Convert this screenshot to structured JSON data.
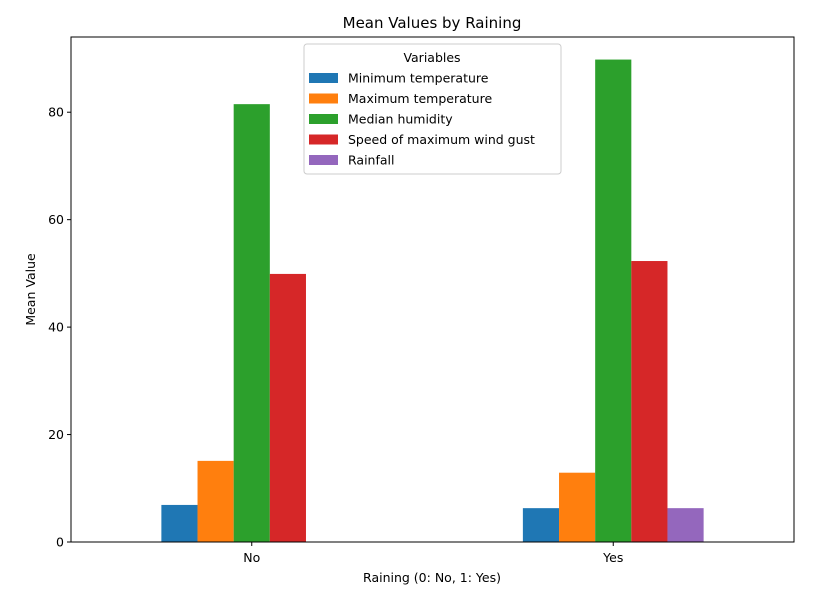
{
  "chart_data": {
    "type": "bar",
    "title": "Mean Values by Raining",
    "xlabel": "Raining (0: No, 1: Yes)",
    "ylabel": "Mean Value",
    "categories": [
      "No",
      "Yes"
    ],
    "ylim": [
      0,
      94
    ],
    "yticks": [
      0,
      20,
      40,
      60,
      80
    ],
    "grid": false,
    "legend": {
      "title": "Variables",
      "placement": "top-center"
    },
    "series": [
      {
        "name": "Minimum temperature",
        "color": "#1f77b4",
        "values": [
          6.9,
          6.3
        ]
      },
      {
        "name": "Maximum temperature",
        "color": "#ff7f0e",
        "values": [
          15.1,
          12.9
        ]
      },
      {
        "name": "Median humidity",
        "color": "#2ca02c",
        "values": [
          81.5,
          89.8
        ]
      },
      {
        "name": "Speed of maximum wind gust",
        "color": "#d62728",
        "values": [
          49.9,
          52.3
        ]
      },
      {
        "name": "Rainfall",
        "color": "#9467bd",
        "values": [
          0.0,
          6.3
        ]
      }
    ]
  }
}
